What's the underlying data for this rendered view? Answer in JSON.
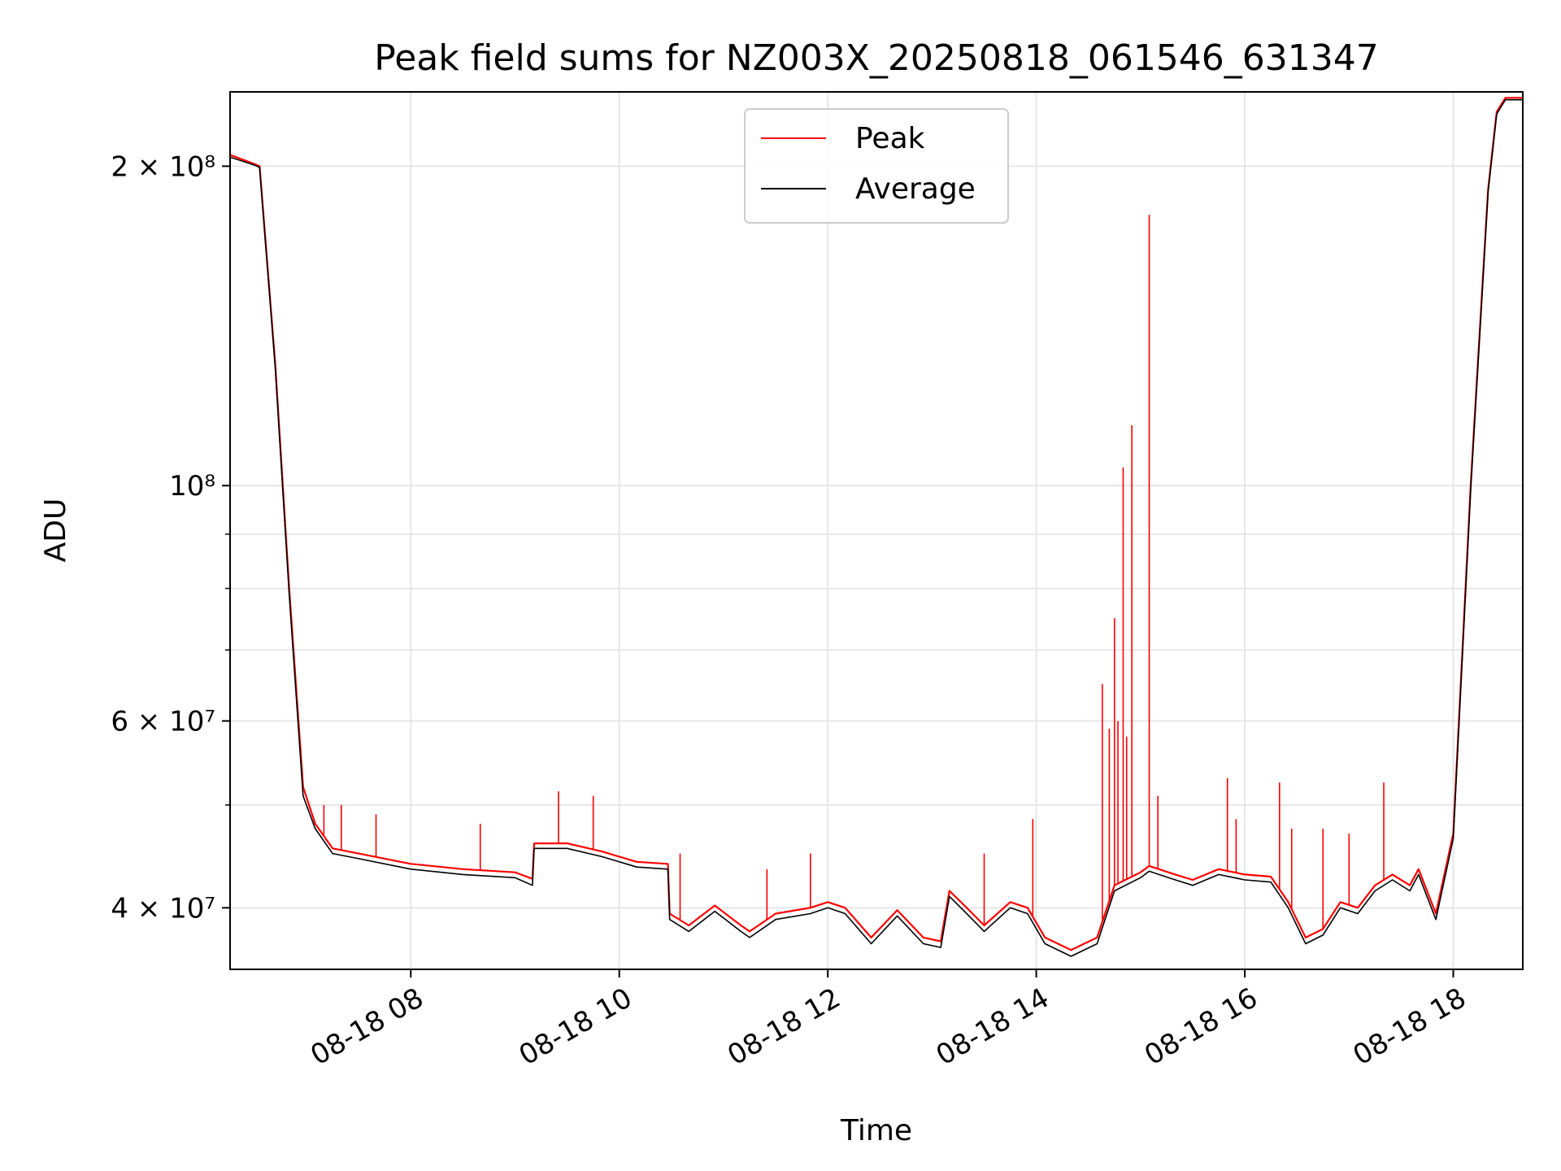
{
  "chart_data": {
    "type": "line",
    "title": "Peak field sums for NZ003X_20250818_061546_631347",
    "xlabel": "Time",
    "ylabel": "ADU",
    "yscale": "log",
    "ylim": [
      35000000,
      235000000
    ],
    "xlim": [
      "2025-08-18 06:16",
      "2025-08-18 18:40"
    ],
    "grid": true,
    "legend_position": "upper center",
    "x_ticks": [
      "08-18 08",
      "08-18 10",
      "08-18 12",
      "08-18 14",
      "08-18 16",
      "08-18 18"
    ],
    "y_ticks": [
      {
        "value": 40000000,
        "label": "4 × 10⁷"
      },
      {
        "value": 60000000,
        "label": "6 × 10⁷"
      },
      {
        "value": 100000000,
        "label": "10⁸"
      },
      {
        "value": 200000000,
        "label": "2 × 10⁸"
      }
    ],
    "y_minor_ticks": [
      50000000,
      70000000,
      80000000,
      90000000
    ],
    "series": [
      {
        "name": "Peak",
        "color": "#ff0000",
        "x": [
          "2025-08-18 06:16",
          "2025-08-18 06:30",
          "2025-08-18 06:33",
          "2025-08-18 06:42",
          "2025-08-18 06:50",
          "2025-08-18 06:58",
          "2025-08-18 07:05",
          "2025-08-18 07:15",
          "2025-08-18 07:30",
          "2025-08-18 08:00",
          "2025-08-18 08:30",
          "2025-08-18 09:00",
          "2025-08-18 09:10",
          "2025-08-18 09:11",
          "2025-08-18 09:30",
          "2025-08-18 09:50",
          "2025-08-18 10:10",
          "2025-08-18 10:28",
          "2025-08-18 10:29",
          "2025-08-18 10:40",
          "2025-08-18 10:55",
          "2025-08-18 11:10",
          "2025-08-18 11:15",
          "2025-08-18 11:30",
          "2025-08-18 11:50",
          "2025-08-18 12:00",
          "2025-08-18 12:10",
          "2025-08-18 12:25",
          "2025-08-18 12:40",
          "2025-08-18 12:55",
          "2025-08-18 13:05",
          "2025-08-18 13:10",
          "2025-08-18 13:20",
          "2025-08-18 13:30",
          "2025-08-18 13:45",
          "2025-08-18 13:55",
          "2025-08-18 14:05",
          "2025-08-18 14:20",
          "2025-08-18 14:35",
          "2025-08-18 14:45",
          "2025-08-18 15:00",
          "2025-08-18 15:05",
          "2025-08-18 15:20",
          "2025-08-18 15:30",
          "2025-08-18 15:45",
          "2025-08-18 16:00",
          "2025-08-18 16:15",
          "2025-08-18 16:25",
          "2025-08-18 16:35",
          "2025-08-18 16:45",
          "2025-08-18 16:55",
          "2025-08-18 17:05",
          "2025-08-18 17:15",
          "2025-08-18 17:25",
          "2025-08-18 17:35",
          "2025-08-18 17:40",
          "2025-08-18 17:50",
          "2025-08-18 18:00",
          "2025-08-18 18:10",
          "2025-08-18 18:20",
          "2025-08-18 18:25",
          "2025-08-18 18:30",
          "2025-08-18 18:40"
        ],
        "y": [
          205000000,
          201000000,
          200000000,
          130000000,
          80000000,
          52000000,
          48000000,
          45500000,
          45000000,
          44000000,
          43500000,
          43200000,
          42600000,
          46000000,
          46000000,
          45200000,
          44200000,
          44000000,
          39500000,
          38500000,
          40200000,
          38500000,
          38000000,
          39500000,
          40000000,
          40500000,
          40000000,
          37500000,
          39800000,
          37500000,
          37200000,
          41500000,
          40000000,
          38500000,
          40500000,
          40000000,
          37500000,
          36500000,
          37500000,
          42000000,
          43200000,
          43800000,
          43000000,
          42500000,
          43500000,
          43000000,
          42800000,
          40500000,
          37500000,
          38200000,
          40500000,
          40000000,
          42000000,
          43000000,
          42000000,
          43500000,
          39500000,
          47000000,
          100000000,
          190000000,
          225000000,
          232000000,
          232000000
        ]
      },
      {
        "name": "Average",
        "color": "#000000",
        "x": [
          "2025-08-18 06:16",
          "2025-08-18 06:30",
          "2025-08-18 06:33",
          "2025-08-18 06:42",
          "2025-08-18 06:50",
          "2025-08-18 06:58",
          "2025-08-18 07:05",
          "2025-08-18 07:15",
          "2025-08-18 07:30",
          "2025-08-18 08:00",
          "2025-08-18 08:30",
          "2025-08-18 09:00",
          "2025-08-18 09:10",
          "2025-08-18 09:11",
          "2025-08-18 09:30",
          "2025-08-18 09:50",
          "2025-08-18 10:10",
          "2025-08-18 10:28",
          "2025-08-18 10:29",
          "2025-08-18 10:40",
          "2025-08-18 10:55",
          "2025-08-18 11:10",
          "2025-08-18 11:15",
          "2025-08-18 11:30",
          "2025-08-18 11:50",
          "2025-08-18 12:00",
          "2025-08-18 12:10",
          "2025-08-18 12:25",
          "2025-08-18 12:40",
          "2025-08-18 12:55",
          "2025-08-18 13:05",
          "2025-08-18 13:10",
          "2025-08-18 13:20",
          "2025-08-18 13:30",
          "2025-08-18 13:45",
          "2025-08-18 13:55",
          "2025-08-18 14:05",
          "2025-08-18 14:20",
          "2025-08-18 14:35",
          "2025-08-18 14:45",
          "2025-08-18 15:00",
          "2025-08-18 15:05",
          "2025-08-18 15:20",
          "2025-08-18 15:30",
          "2025-08-18 15:45",
          "2025-08-18 16:00",
          "2025-08-18 16:15",
          "2025-08-18 16:25",
          "2025-08-18 16:35",
          "2025-08-18 16:45",
          "2025-08-18 16:55",
          "2025-08-18 17:05",
          "2025-08-18 17:15",
          "2025-08-18 17:25",
          "2025-08-18 17:35",
          "2025-08-18 17:40",
          "2025-08-18 17:50",
          "2025-08-18 18:00",
          "2025-08-18 18:10",
          "2025-08-18 18:20",
          "2025-08-18 18:25",
          "2025-08-18 18:30",
          "2025-08-18 18:40"
        ],
        "y": [
          204000000,
          200500000,
          199500000,
          129000000,
          79000000,
          51000000,
          47500000,
          45000000,
          44500000,
          43500000,
          43000000,
          42700000,
          42000000,
          45500000,
          45500000,
          44700000,
          43700000,
          43500000,
          39000000,
          38000000,
          39700000,
          38000000,
          37500000,
          39000000,
          39500000,
          40000000,
          39500000,
          37000000,
          39300000,
          37000000,
          36700000,
          41000000,
          39500000,
          38000000,
          40000000,
          39500000,
          37000000,
          36000000,
          37000000,
          41500000,
          42700000,
          43300000,
          42500000,
          42000000,
          43000000,
          42500000,
          42300000,
          40000000,
          37000000,
          37700000,
          40000000,
          39500000,
          41500000,
          42500000,
          41500000,
          43000000,
          39000000,
          46500000,
          99000000,
          189000000,
          224000000,
          231000000,
          231000000
        ]
      }
    ],
    "spikes": {
      "x": [
        "2025-08-18 07:10",
        "2025-08-18 07:20",
        "2025-08-18 07:40",
        "2025-08-18 08:40",
        "2025-08-18 09:25",
        "2025-08-18 09:45",
        "2025-08-18 10:35",
        "2025-08-18 11:25",
        "2025-08-18 11:50",
        "2025-08-18 13:30",
        "2025-08-18 13:58",
        "2025-08-18 14:38",
        "2025-08-18 14:42",
        "2025-08-18 14:45",
        "2025-08-18 14:47",
        "2025-08-18 14:50",
        "2025-08-18 14:52",
        "2025-08-18 14:55",
        "2025-08-18 15:05",
        "2025-08-18 15:10",
        "2025-08-18 15:50",
        "2025-08-18 15:55",
        "2025-08-18 16:20",
        "2025-08-18 16:27",
        "2025-08-18 16:45",
        "2025-08-18 17:00",
        "2025-08-18 17:20"
      ],
      "y": [
        50000000,
        50000000,
        49000000,
        48000000,
        51500000,
        51000000,
        45000000,
        43500000,
        45000000,
        45000000,
        48500000,
        65000000,
        59000000,
        75000000,
        60000000,
        104000000,
        58000000,
        114000000,
        180000000,
        51000000,
        53000000,
        48500000,
        52500000,
        47500000,
        47500000,
        47000000,
        52500000
      ]
    }
  }
}
